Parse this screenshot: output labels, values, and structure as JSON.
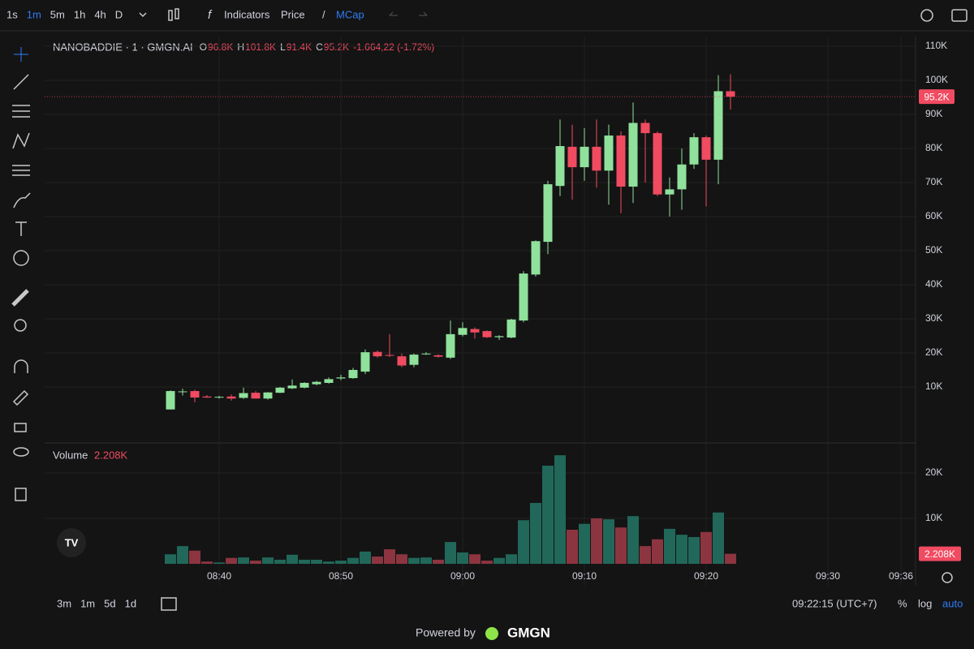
{
  "toolbar": {
    "intervals": [
      "1s",
      "1m",
      "5m",
      "1h",
      "4h",
      "D"
    ],
    "active_interval": 1,
    "indicators": "Indicators",
    "price": "Price",
    "separator": "/",
    "mcap": "MCap"
  },
  "bottom_bar": {
    "ranges": [
      "3m",
      "1m",
      "5d",
      "1d"
    ],
    "clock": "09:22:15 (UTC+7)",
    "percent": "%",
    "log": "log",
    "auto": "auto"
  },
  "footer": {
    "powered_by": "Powered by",
    "brand": "GMGN"
  },
  "chart_data": {
    "type": "candlestick",
    "title": "NANOBADDIE · 1 · GMGN.AI",
    "ohlc_legend": [
      {
        "key": "O",
        "text": "96.8K"
      },
      {
        "key": "H",
        "text": "101.8K"
      },
      {
        "key": "L",
        "text": "91.4K"
      },
      {
        "key": "C",
        "text": "95.2K"
      }
    ],
    "change": "-1.664,22 (-1.72%)",
    "x": [
      516,
      517,
      518,
      519,
      520,
      521,
      522,
      523,
      524,
      525,
      526,
      527,
      528,
      529,
      530,
      531,
      532,
      533,
      534,
      535,
      536,
      537,
      538,
      539,
      540,
      541,
      542,
      543,
      544,
      545,
      546,
      547,
      548,
      549,
      550,
      551,
      552,
      553,
      554,
      555,
      556,
      557,
      558,
      559,
      560,
      561,
      562
    ],
    "open": [
      3400,
      8500,
      8800,
      7200,
      6900,
      7200,
      6800,
      8300,
      6600,
      8300,
      9600,
      9800,
      10800,
      11200,
      12500,
      12600,
      14500,
      20300,
      19400,
      19000,
      16500,
      19600,
      19300,
      18600,
      25300,
      27000,
      26400,
      24600,
      24500,
      29500,
      43000,
      52600,
      69000,
      80500,
      74500,
      80500,
      73500,
      83800,
      68800,
      87500,
      84500,
      66500,
      68000,
      75300,
      83300,
      76700,
      96800
    ],
    "high": [
      9000,
      9500,
      9200,
      7600,
      7400,
      7800,
      9800,
      8800,
      8500,
      10000,
      12200,
      11400,
      11800,
      12800,
      13600,
      15600,
      21000,
      20700,
      25500,
      19800,
      19800,
      20200,
      19600,
      29500,
      29000,
      27500,
      26600,
      25200,
      30000,
      44000,
      53000,
      70500,
      88500,
      87000,
      86000,
      88500,
      87000,
      85000,
      93500,
      88500,
      85000,
      71500,
      80000,
      84500,
      83800,
      101500,
      101800
    ],
    "low": [
      3400,
      7500,
      5500,
      6800,
      6600,
      6000,
      6500,
      6600,
      6300,
      8200,
      9400,
      9600,
      10500,
      11000,
      12000,
      12400,
      13800,
      18600,
      18800,
      15800,
      15800,
      19400,
      18600,
      18200,
      24800,
      24200,
      24400,
      23800,
      24300,
      29000,
      42400,
      49000,
      66000,
      65000,
      70500,
      68500,
      63500,
      61000,
      64000,
      70000,
      66000,
      60000,
      62000,
      74000,
      63000,
      69500,
      91400
    ],
    "close": [
      8800,
      8700,
      6900,
      6900,
      7100,
      6600,
      8200,
      6600,
      8400,
      9800,
      10400,
      11200,
      11500,
      12300,
      12800,
      15000,
      20200,
      19000,
      19300,
      16300,
      19500,
      19800,
      18900,
      25500,
      27300,
      26000,
      24600,
      24900,
      29800,
      43300,
      52800,
      69500,
      80700,
      74500,
      80500,
      73500,
      83800,
      68800,
      87500,
      84500,
      66500,
      68000,
      75300,
      83300,
      76700,
      96800,
      95200
    ],
    "up_color": "#8fe19b",
    "down_color": "#f04b61",
    "xlim": [
      505.667,
      577.2
    ],
    "xticks": [
      {
        "value": 520,
        "label": "08:40"
      },
      {
        "value": 530,
        "label": "08:50"
      },
      {
        "value": 540,
        "label": "09:00"
      },
      {
        "value": 550,
        "label": "09:10"
      },
      {
        "value": 560,
        "label": "09:20"
      },
      {
        "value": 570,
        "label": "09:30"
      },
      {
        "value": 576,
        "label": "09:36"
      }
    ],
    "ylim": [
      -6190,
      112860
    ],
    "yticks": [
      {
        "value": 10000,
        "label": "10K"
      },
      {
        "value": 20000,
        "label": "20K"
      },
      {
        "value": 30000,
        "label": "30K"
      },
      {
        "value": 40000,
        "label": "40K"
      },
      {
        "value": 50000,
        "label": "50K"
      },
      {
        "value": 60000,
        "label": "60K"
      },
      {
        "value": 70000,
        "label": "70K"
      },
      {
        "value": 80000,
        "label": "80K"
      },
      {
        "value": 90000,
        "label": "90K"
      },
      {
        "value": 100000,
        "label": "100K"
      },
      {
        "value": 110000,
        "label": "110K"
      }
    ],
    "grid": true,
    "last_price": {
      "value": 95200,
      "label": "95.2K"
    },
    "volume": {
      "title": "Volume",
      "values": [
        2100,
        3900,
        2900,
        500,
        300,
        1300,
        1400,
        700,
        1400,
        900,
        2000,
        900,
        900,
        500,
        700,
        1300,
        2700,
        1600,
        3200,
        2100,
        1300,
        1400,
        900,
        4800,
        2500,
        2100,
        700,
        1300,
        2100,
        9600,
        13400,
        21600,
        23900,
        7500,
        8800,
        10000,
        9800,
        8000,
        10500,
        3900,
        5400,
        7700,
        6400,
        5900,
        7000,
        11300,
        2208
      ],
      "up_color": "#21685a",
      "down_color": "#8c3540",
      "ylim": [
        0,
        26250
      ],
      "yticks": [
        {
          "value": 10000,
          "label": "10K"
        },
        {
          "value": 20000,
          "label": "20K"
        }
      ],
      "last": {
        "value": 2208,
        "label": "2.208K"
      }
    }
  }
}
